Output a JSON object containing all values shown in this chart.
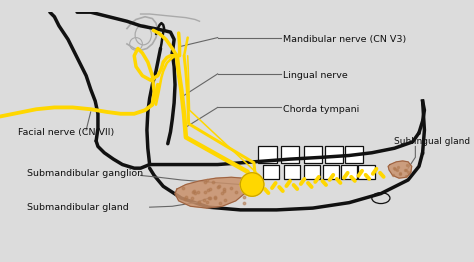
{
  "bg_color": "#dcdcdc",
  "yellow": "#FFD700",
  "black": "#111111",
  "dark_gray": "#444444",
  "ann_gray": "#666666",
  "gland_fill": "#c8906a",
  "gland_edge": "#9a6040",
  "ganglion_fill": "#FFD700",
  "label_fs": 6.8,
  "lw_thick": 2.5,
  "lw_med": 1.8,
  "lw_thin": 1.1,
  "labels": {
    "mandibular": "Mandibular nerve (CN V3)",
    "lingual": "Lingual nerve",
    "chorda": "Chorda tympani",
    "facial": "Facial nerve (CN VII)",
    "sublingual": "Sublingual gland",
    "subm_ganglion": "Submandibular ganglion",
    "subm_gland": "Submandibular gland"
  }
}
